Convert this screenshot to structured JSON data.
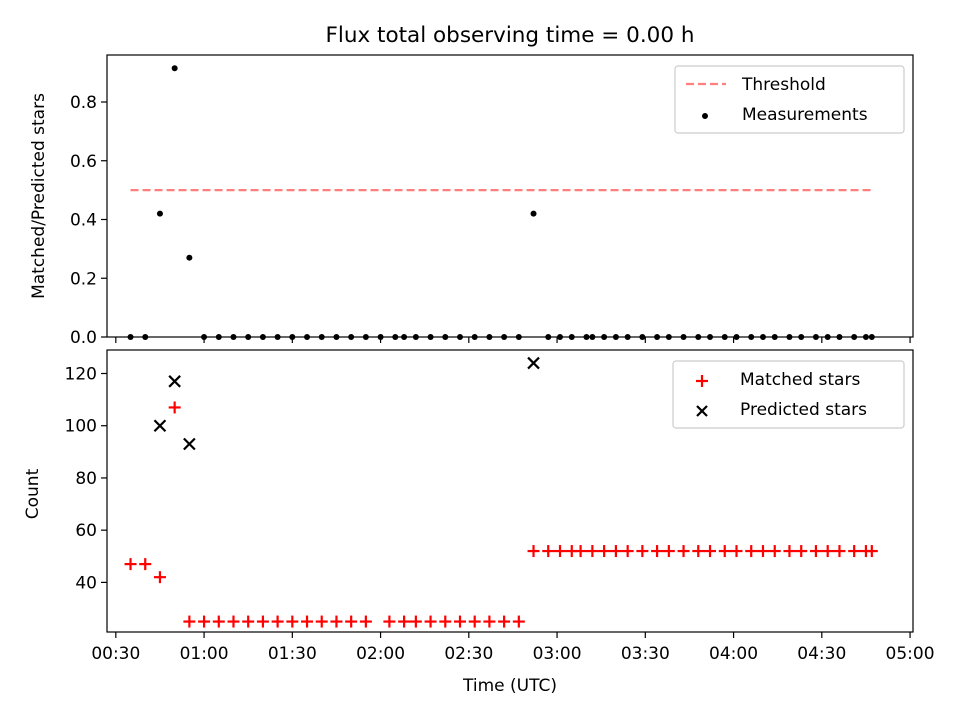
{
  "chart_data": [
    {
      "type": "scatter",
      "title": "Flux total observing time = 0.00 h",
      "xlabel": "",
      "ylabel": "Matched/Predicted stars",
      "ylim": [
        0,
        0.96
      ],
      "y_ticks": [
        "0.0",
        "0.2",
        "0.4",
        "0.6",
        "0.8"
      ],
      "legend_position": "top-right",
      "threshold": {
        "name": "Threshold",
        "value": 0.5,
        "x_start": "00:35",
        "x_end": "04:47",
        "color": "#ff7f7f",
        "style": "dashed"
      },
      "series": [
        {
          "name": "Measurements",
          "marker": "dot",
          "color": "#000000",
          "x": [
            "00:35",
            "00:40",
            "00:45",
            "00:50",
            "00:55",
            "01:00",
            "01:05",
            "01:10",
            "01:15",
            "01:20",
            "01:25",
            "01:30",
            "01:35",
            "01:40",
            "01:45",
            "01:50",
            "01:55",
            "02:00",
            "02:05",
            "02:08",
            "02:12",
            "02:17",
            "02:22",
            "02:27",
            "02:32",
            "02:37",
            "02:42",
            "02:47",
            "02:52",
            "02:57",
            "03:01",
            "03:05",
            "03:10",
            "03:12",
            "03:16",
            "03:20",
            "03:24",
            "03:29",
            "03:34",
            "03:38",
            "03:43",
            "03:48",
            "03:52",
            "03:57",
            "04:01",
            "04:06",
            "04:10",
            "04:14",
            "04:19",
            "04:23",
            "04:28",
            "04:32",
            "04:36",
            "04:41",
            "04:45",
            "04:47"
          ],
          "y": [
            0.0,
            0.0,
            0.42,
            0.915,
            0.27,
            0.0,
            0.0,
            0.0,
            0.0,
            0.0,
            0.0,
            0.0,
            0.0,
            0.0,
            0.0,
            0.0,
            0.0,
            0.0,
            0.0,
            0.0,
            0.0,
            0.0,
            0.0,
            0.0,
            0.0,
            0.0,
            0.0,
            0.0,
            0.42,
            0.0,
            0.0,
            0.0,
            0.0,
            0.0,
            0.0,
            0.0,
            0.0,
            0.0,
            0.0,
            0.0,
            0.0,
            0.0,
            0.0,
            0.0,
            0.0,
            0.0,
            0.0,
            0.0,
            0.0,
            0.0,
            0.0,
            0.0,
            0.0,
            0.0,
            0.0,
            0.0
          ]
        }
      ]
    },
    {
      "type": "scatter",
      "title": "",
      "xlabel": "Time (UTC)",
      "ylabel": "Count",
      "ylim": [
        21,
        129
      ],
      "y_ticks": [
        "40",
        "60",
        "80",
        "100",
        "120"
      ],
      "x_ticks": [
        "00:30",
        "01:00",
        "01:30",
        "02:00",
        "02:30",
        "03:00",
        "03:30",
        "04:00",
        "04:30",
        "05:00"
      ],
      "xlim": [
        "00:27",
        "05:01"
      ],
      "legend_position": "top-right",
      "series": [
        {
          "name": "Matched stars",
          "marker": "plus",
          "color": "#ff0000",
          "x": [
            "00:35",
            "00:40",
            "00:45",
            "00:50",
            "00:55",
            "01:00",
            "01:05",
            "01:10",
            "01:15",
            "01:20",
            "01:25",
            "01:30",
            "01:35",
            "01:40",
            "01:45",
            "01:50",
            "01:55",
            "02:03",
            "02:08",
            "02:12",
            "02:17",
            "02:22",
            "02:27",
            "02:32",
            "02:37",
            "02:42",
            "02:47",
            "02:52",
            "02:57",
            "03:01",
            "03:05",
            "03:08",
            "03:12",
            "03:16",
            "03:20",
            "03:24",
            "03:29",
            "03:34",
            "03:38",
            "03:43",
            "03:48",
            "03:52",
            "03:57",
            "04:01",
            "04:06",
            "04:10",
            "04:14",
            "04:19",
            "04:23",
            "04:28",
            "04:32",
            "04:36",
            "04:41",
            "04:45",
            "04:47"
          ],
          "y": [
            47,
            47,
            42,
            107,
            25,
            25,
            25,
            25,
            25,
            25,
            25,
            25,
            25,
            25,
            25,
            25,
            25,
            25,
            25,
            25,
            25,
            25,
            25,
            25,
            25,
            25,
            25,
            52,
            52,
            52,
            52,
            52,
            52,
            52,
            52,
            52,
            52,
            52,
            52,
            52,
            52,
            52,
            52,
            52,
            52,
            52,
            52,
            52,
            52,
            52,
            52,
            52,
            52,
            52,
            52
          ]
        },
        {
          "name": "Predicted stars",
          "marker": "x",
          "color": "#000000",
          "x": [
            "00:45",
            "00:50",
            "00:55",
            "02:52"
          ],
          "y": [
            100,
            117,
            93,
            124
          ]
        }
      ]
    }
  ]
}
